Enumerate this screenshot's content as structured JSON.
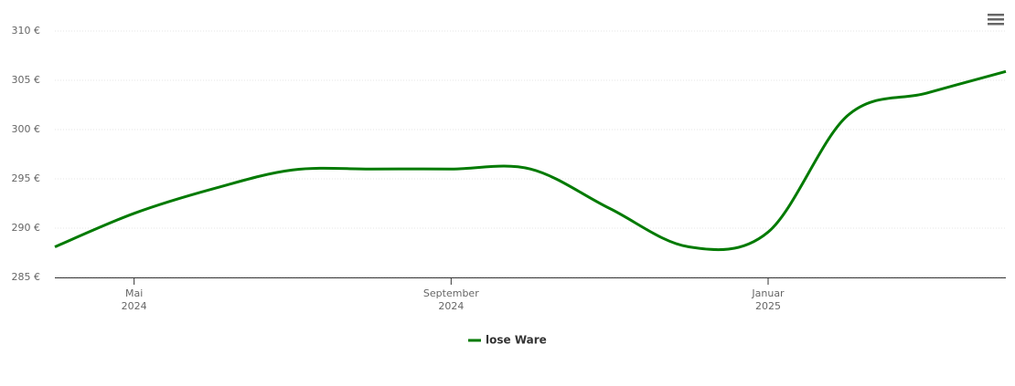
{
  "chart_data": {
    "type": "line",
    "x": [
      "2024-04",
      "2024-05",
      "2024-06",
      "2024-07",
      "2024-08",
      "2024-09",
      "2024-10",
      "2024-11",
      "2024-12",
      "2025-01",
      "2025-02",
      "2025-03",
      "2025-04"
    ],
    "series": [
      {
        "name": "lose Ware",
        "color": "#007a00",
        "values": [
          288.1,
          291.5,
          294,
          295.9,
          296,
          296,
          296,
          292,
          288.1,
          289.6,
          301.4,
          303.7,
          305.9
        ]
      }
    ],
    "xlim": [
      "2024-04",
      "2025-04"
    ],
    "xticks": [
      {
        "value": "2024-05",
        "label": [
          "Mai",
          "2024"
        ]
      },
      {
        "value": "2024-09",
        "label": [
          "September",
          "2024"
        ]
      },
      {
        "value": "2025-01",
        "label": [
          "Januar",
          "2025"
        ]
      }
    ],
    "ylim": [
      285,
      310
    ],
    "yticks": [
      {
        "value": 285,
        "label": "285 €"
      },
      {
        "value": 290,
        "label": "290 €"
      },
      {
        "value": 295,
        "label": "295 €"
      },
      {
        "value": 300,
        "label": "300 €"
      },
      {
        "value": 305,
        "label": "305 €"
      },
      {
        "value": 310,
        "label": "310 €"
      }
    ],
    "grid": true,
    "legend": "bottom"
  }
}
